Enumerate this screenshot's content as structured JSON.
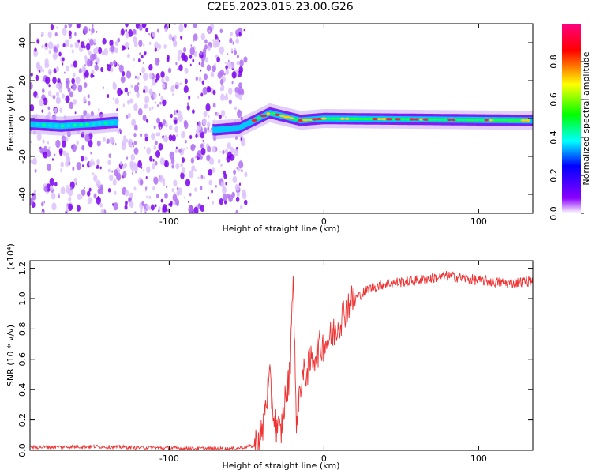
{
  "title": "C2E5.2023.015.23.00.G26",
  "chart_data": [
    {
      "type": "heatmap",
      "xlabel": "Height of straight line (km)",
      "ylabel": "Frequency (Hz)",
      "xlim": [
        -190,
        135
      ],
      "ylim": [
        -50,
        50
      ],
      "x_ticks": [
        -100,
        0,
        100
      ],
      "y_ticks": [
        -40,
        -20,
        0,
        20,
        40
      ],
      "colorbar": {
        "label": "Normalized spectral amplitude",
        "range": [
          0,
          1
        ],
        "ticks": [
          "0.0",
          "0.2",
          "0.4",
          "0.6",
          "0.8"
        ],
        "colormap": [
          "#ffffff",
          "#8b00ff",
          "#0000ff",
          "#00ffff",
          "#00ff00",
          "#ffff00",
          "#ff0000",
          "#ff0080"
        ]
      },
      "description_of_features": {
        "noise_region_x": [
          -190,
          -55
        ],
        "signal_ridge": [
          {
            "x": -190,
            "f": -3
          },
          {
            "x": -170,
            "f": -4
          },
          {
            "x": -150,
            "f": -3
          },
          {
            "x": -135,
            "f": -2
          },
          {
            "x": -70,
            "f": -6
          },
          {
            "x": -55,
            "f": -5
          },
          {
            "x": -45,
            "f": -1
          },
          {
            "x": -35,
            "f": 3
          },
          {
            "x": -25,
            "f": 1
          },
          {
            "x": -15,
            "f": -1
          },
          {
            "x": 0,
            "f": 0
          },
          {
            "x": 135,
            "f": -1
          }
        ]
      }
    },
    {
      "type": "line",
      "xlabel": "Height of straight line (km)",
      "ylabel": "SNR (10 * v/v)",
      "y_multiplier": "(x10⁴)",
      "xlim": [
        -190,
        135
      ],
      "ylim": [
        0,
        1.25
      ],
      "x_ticks": [
        -100,
        0,
        100
      ],
      "y_ticks": [
        "0.0",
        "0.2",
        "0.4",
        "0.6",
        "0.8",
        "1.0",
        "1.2"
      ],
      "series": [
        {
          "color": "#ee3333",
          "points": [
            [
              -190,
              0.02
            ],
            [
              -150,
              0.025
            ],
            [
              -100,
              0.015
            ],
            [
              -60,
              0.01
            ],
            [
              -45,
              0.03
            ],
            [
              -40,
              0.1
            ],
            [
              -38,
              0.3
            ],
            [
              -35,
              0.45
            ],
            [
              -32,
              0.2
            ],
            [
              -28,
              0.1
            ],
            [
              -25,
              0.35
            ],
            [
              -22,
              0.5
            ],
            [
              -20,
              1.2
            ],
            [
              -18,
              0.2
            ],
            [
              -15,
              0.45
            ],
            [
              -10,
              0.55
            ],
            [
              -5,
              0.65
            ],
            [
              0,
              0.7
            ],
            [
              5,
              0.75
            ],
            [
              10,
              0.85
            ],
            [
              15,
              0.95
            ],
            [
              20,
              1.0
            ],
            [
              30,
              1.07
            ],
            [
              40,
              1.1
            ],
            [
              60,
              1.12
            ],
            [
              80,
              1.15
            ],
            [
              100,
              1.12
            ],
            [
              120,
              1.1
            ],
            [
              135,
              1.12
            ]
          ]
        }
      ]
    }
  ]
}
